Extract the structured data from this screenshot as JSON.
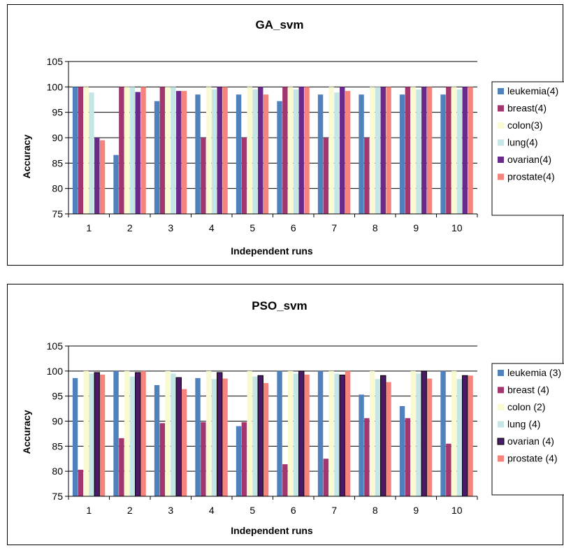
{
  "charts": [
    {
      "title": "GA_svm",
      "xlabel": "Independent runs",
      "ylabel": "Accuracy"
    },
    {
      "title": "PSO_svm",
      "xlabel": "Independent runs",
      "ylabel": "Accuracy"
    }
  ],
  "chart_data": [
    {
      "type": "bar",
      "title": "GA_svm",
      "xlabel": "Independent runs",
      "ylabel": "Accuracy",
      "categories": [
        "1",
        "2",
        "3",
        "4",
        "5",
        "6",
        "7",
        "8",
        "9",
        "10"
      ],
      "ylim": [
        75,
        105
      ],
      "yticks": [
        "75",
        "80",
        "85",
        "90",
        "95",
        "100",
        "105"
      ],
      "grid": true,
      "legend": "right",
      "series": [
        {
          "name": "leukemia(4)",
          "color": "#4f81bd",
          "values": [
            100,
            86.6,
            97.2,
            98.5,
            98.5,
            97.2,
            98.5,
            98.5,
            98.5,
            98.5
          ]
        },
        {
          "name": "breast(4)",
          "color": "#a2366e",
          "values": [
            100,
            100,
            100,
            90,
            90,
            100,
            90,
            90,
            100,
            100
          ]
        },
        {
          "name": "colon(3)",
          "color": "#fafad2",
          "values": [
            100,
            100,
            100,
            100,
            100,
            100,
            100,
            100,
            100,
            100
          ]
        },
        {
          "name": "lung(4)",
          "color": "#c6e6e6",
          "values": [
            98.9,
            100,
            100,
            99.5,
            99.5,
            99.5,
            98.9,
            100,
            99.5,
            99.5
          ]
        },
        {
          "name": "ovarian(4)",
          "color": "#6a2a8c",
          "values": [
            90,
            99,
            99.2,
            100,
            100,
            100,
            100,
            100,
            100,
            100
          ]
        },
        {
          "name": "prostate(4)",
          "color": "#f4847c",
          "values": [
            89.5,
            100,
            99.2,
            100,
            98.5,
            100,
            99.2,
            100,
            100,
            100
          ]
        }
      ]
    },
    {
      "type": "bar",
      "title": "PSO_svm",
      "xlabel": "Independent runs",
      "ylabel": "Accuracy",
      "categories": [
        "1",
        "2",
        "3",
        "4",
        "5",
        "6",
        "7",
        "8",
        "9",
        "10"
      ],
      "ylim": [
        75,
        105
      ],
      "yticks": [
        "75",
        "80",
        "85",
        "90",
        "95",
        "100",
        "105"
      ],
      "grid": true,
      "legend": "right",
      "series": [
        {
          "name": "leukemia (3)",
          "color": "#4f81bd",
          "values": [
            98.6,
            100,
            97.2,
            98.6,
            89,
            100,
            100,
            95.3,
            93,
            100
          ]
        },
        {
          "name": "breast (4)",
          "color": "#a2366e",
          "values": [
            80.3,
            86.6,
            89.6,
            89.8,
            89.8,
            81.4,
            82.5,
            90.6,
            90.6,
            85.5
          ]
        },
        {
          "name": "colon (2)",
          "color": "#fafad2",
          "values": [
            100,
            100,
            100,
            100,
            100,
            100,
            100,
            100,
            100,
            100
          ]
        },
        {
          "name": "lung (4)",
          "color": "#c6e6e6",
          "values": [
            99.5,
            98.9,
            99.5,
            98.4,
            98.9,
            99.5,
            99.5,
            98.4,
            99.5,
            98.4
          ]
        },
        {
          "name": "ovarian (4)",
          "color": "#4b1a66",
          "outline": "#000000",
          "values": [
            99.7,
            99.7,
            98.7,
            99.7,
            99.1,
            100,
            99.2,
            99.1,
            100,
            99.1
          ]
        },
        {
          "name": "prostate (4)",
          "color": "#f4847c",
          "values": [
            99.3,
            100,
            96.4,
            98.5,
            97.6,
            99.3,
            100,
            97.8,
            98.5,
            99.1
          ]
        }
      ]
    }
  ]
}
